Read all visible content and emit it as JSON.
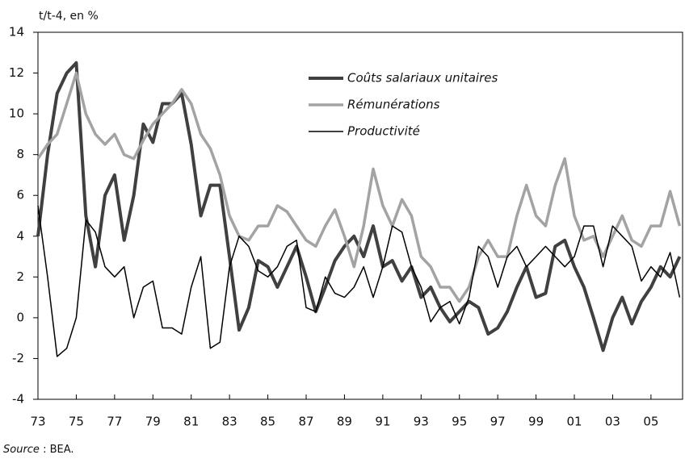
{
  "chart_data": {
    "type": "line",
    "y_label": "t/t-4, en %",
    "source_label": "Source",
    "source_text": " : BEA.",
    "x": [
      1973,
      1973.5,
      1974,
      1974.5,
      1975,
      1975.5,
      1976,
      1976.5,
      1977,
      1977.5,
      1978,
      1978.5,
      1979,
      1979.5,
      1980,
      1980.5,
      1981,
      1981.5,
      1982,
      1982.5,
      1983,
      1983.5,
      1984,
      1984.5,
      1985,
      1985.5,
      1986,
      1986.5,
      1987,
      1987.5,
      1988,
      1988.5,
      1989,
      1989.5,
      1990,
      1990.5,
      1991,
      1991.5,
      1992,
      1992.5,
      1993,
      1993.5,
      1994,
      1994.5,
      1995,
      1995.5,
      1996,
      1996.5,
      1997,
      1997.5,
      1998,
      1998.5,
      1999,
      1999.5,
      2000,
      2000.5,
      2001,
      2001.5,
      2002,
      2002.5,
      2003,
      2003.5,
      2004,
      2004.5,
      2005,
      2005.5,
      2006,
      2006.5
    ],
    "series": [
      {
        "name": "Coûts salariaux unitaires",
        "color": "#404040",
        "width": 4,
        "values": [
          4,
          8,
          11,
          12,
          12.5,
          5,
          2.5,
          6,
          7,
          3.8,
          6,
          9.5,
          8.6,
          10.5,
          10.5,
          11,
          8.5,
          5,
          6.5,
          6.5,
          3,
          -0.6,
          0.5,
          2.8,
          2.5,
          1.5,
          2.5,
          3.5,
          2,
          0.3,
          1.5,
          2.8,
          3.5,
          4,
          3,
          4.5,
          2.5,
          2.8,
          1.8,
          2.5,
          1,
          1.5,
          0.5,
          -0.2,
          0.3,
          0.8,
          0.5,
          -0.8,
          -0.5,
          0.3,
          1.5,
          2.5,
          1,
          1.2,
          3.5,
          3.8,
          2.5,
          1.5,
          0,
          -1.6,
          0,
          1,
          -0.3,
          0.8,
          1.5,
          2.5,
          2,
          3
        ]
      },
      {
        "name": "Rémunérations",
        "color": "#a3a3a3",
        "width": 3.5,
        "values": [
          7.8,
          8.5,
          9,
          10.5,
          12,
          10,
          9,
          8.5,
          9,
          8,
          7.8,
          8.7,
          9.5,
          10,
          10.5,
          11.2,
          10.5,
          9,
          8.3,
          7,
          5,
          4,
          3.8,
          4.5,
          4.5,
          5.5,
          5.2,
          4.5,
          3.8,
          3.5,
          4.5,
          5.3,
          4,
          2.5,
          4.5,
          7.3,
          5.5,
          4.5,
          5.8,
          5,
          3,
          2.5,
          1.5,
          1.5,
          0.8,
          1.5,
          3,
          3.8,
          3,
          3,
          5,
          6.5,
          5,
          4.5,
          6.5,
          7.8,
          5,
          3.8,
          4,
          3,
          4,
          5,
          3.8,
          3.5,
          4.5,
          4.5,
          6.2,
          4.5
        ]
      },
      {
        "name": "Productivité",
        "color": "#000000",
        "width": 1.5,
        "values": [
          5.5,
          2,
          -1.9,
          -1.5,
          0,
          4.8,
          4.2,
          2.5,
          2,
          2.5,
          0,
          1.5,
          1.8,
          -0.5,
          -0.5,
          -0.8,
          1.5,
          3,
          -1.5,
          -1.2,
          2.5,
          4,
          3.5,
          2.3,
          2,
          2.5,
          3.5,
          3.8,
          0.5,
          0.3,
          2,
          1.2,
          1,
          1.5,
          2.5,
          1,
          2.5,
          4.5,
          4.2,
          2.5,
          1.5,
          -0.2,
          0.5,
          0.8,
          -0.3,
          1,
          3.5,
          3,
          1.5,
          3,
          3.5,
          2.5,
          3,
          3.5,
          3,
          2.5,
          3,
          4.5,
          4.5,
          2.5,
          4.5,
          4,
          3.5,
          1.8,
          2.5,
          2,
          3.2,
          1
        ]
      }
    ],
    "xlim": [
      1973,
      2006.65
    ],
    "xticks": [
      {
        "value": 1973,
        "label": "73"
      },
      {
        "value": 1975,
        "label": "75"
      },
      {
        "value": 1977,
        "label": "77"
      },
      {
        "value": 1979,
        "label": "79"
      },
      {
        "value": 1981,
        "label": "81"
      },
      {
        "value": 1983,
        "label": "83"
      },
      {
        "value": 1985,
        "label": "85"
      },
      {
        "value": 1987,
        "label": "87"
      },
      {
        "value": 1989,
        "label": "89"
      },
      {
        "value": 1991,
        "label": "91"
      },
      {
        "value": 1993,
        "label": "93"
      },
      {
        "value": 1995,
        "label": "95"
      },
      {
        "value": 1997,
        "label": "97"
      },
      {
        "value": 1999,
        "label": "99"
      },
      {
        "value": 2001,
        "label": "01"
      },
      {
        "value": 2003,
        "label": "03"
      },
      {
        "value": 2005,
        "label": "05"
      }
    ],
    "ylim": [
      -4,
      14
    ],
    "yticks": [
      -4,
      -2,
      0,
      2,
      4,
      6,
      8,
      10,
      12,
      14
    ],
    "grid": false
  }
}
